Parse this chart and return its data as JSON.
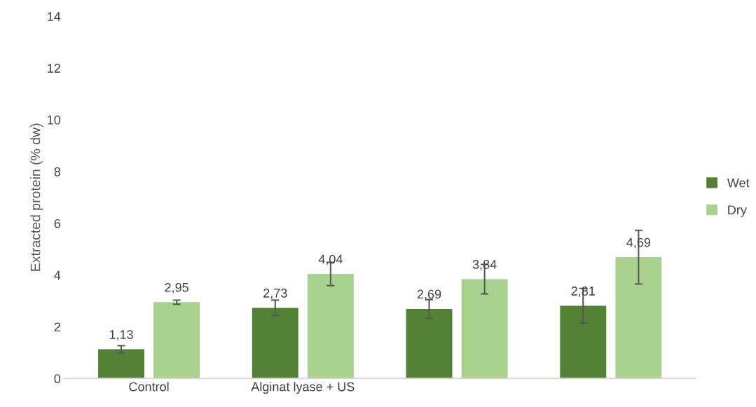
{
  "chart_data": {
    "type": "bar",
    "ylabel": "Extracted protein (% dw)",
    "categories": [
      "Control",
      "Alginat lyase + US",
      null,
      null
    ],
    "ylim": [
      0,
      14
    ],
    "yticks": [
      0,
      2,
      4,
      6,
      8,
      10,
      12,
      14
    ],
    "grid": false,
    "legend": "right",
    "series": [
      {
        "name": "Wet",
        "color": "#538135",
        "values": [
          1.13,
          2.73,
          2.69,
          2.81
        ],
        "errors": [
          0.14,
          0.3,
          0.36,
          0.67
        ],
        "value_labels": [
          "1,13",
          "2,73",
          "2,69",
          "2,81"
        ]
      },
      {
        "name": "Dry",
        "color": "#a9d18e",
        "values": [
          2.95,
          4.04,
          3.84,
          4.69
        ],
        "errors": [
          0.08,
          0.45,
          0.57,
          1.04
        ],
        "value_labels": [
          "2,95",
          "4,04",
          "3,84",
          "4,69"
        ]
      }
    ]
  }
}
